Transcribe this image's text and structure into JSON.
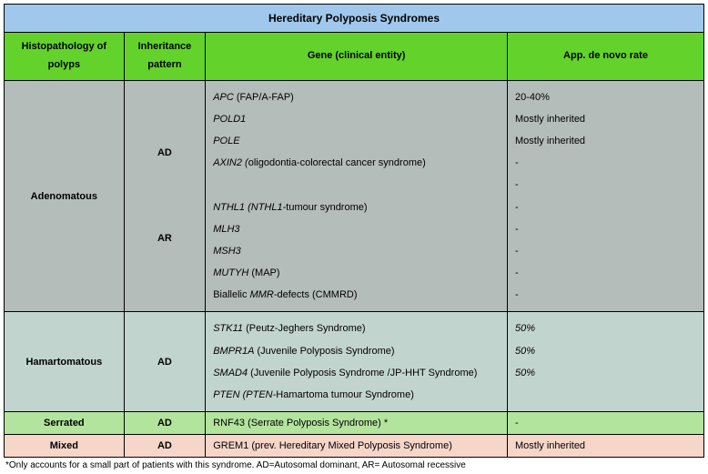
{
  "title": "Hereditary Polyposis Syndromes",
  "headers": {
    "histopathology": "Histopathology of polyps",
    "inheritance": "Inheritance pattern",
    "gene": "Gene (clinical entity)",
    "rate": "App. de novo rate"
  },
  "adenomatous": {
    "label": "Adenomatous",
    "inh_ad": "AD",
    "inh_ar": "AR",
    "genes": [
      {
        "g": "APC",
        "p": " (FAP/A-FAP)"
      },
      {
        "g": "POLD1",
        "p": ""
      },
      {
        "g": "POLE",
        "p": ""
      },
      {
        "g": "AXIN2 (",
        "p": "oligodontia-colorectal cancer syndrome)",
        "blank_after": true
      },
      {
        "g": "NTHL1 (NTHL1-",
        "p": "tumour syndrome)"
      },
      {
        "g": "MLH3",
        "p": ""
      },
      {
        "g": "MSH3",
        "p": ""
      },
      {
        "g": "MUTYH",
        "p": " (MAP)"
      },
      {
        "g": "",
        "p": "Biallelic ",
        "g2": "MMR-",
        "p2": "defects (CMMRD)"
      }
    ],
    "rates": [
      "20-40%",
      "Mostly inherited",
      "Mostly inherited",
      "-",
      "-",
      "-",
      "-",
      "-",
      "-",
      "-"
    ]
  },
  "hamartomatous": {
    "label": "Hamartomatous",
    "inh": "AD",
    "genes": [
      {
        "g": "STK11",
        "p": " (Peutz-Jeghers Syndrome)"
      },
      {
        "g": "BMPR1A",
        "p": " (Juvenile Polyposis Syndrome)"
      },
      {
        "g": "SMAD4",
        "p": " (Juvenile Polyposis Syndrome /JP-HHT Syndrome)"
      },
      {
        "g": "PTEN (PTEN-",
        "p": "Hamartoma tumour Syndrome)"
      }
    ],
    "rates": [
      "50%",
      "50%",
      "50%",
      ""
    ]
  },
  "serrated": {
    "label": "Serrated",
    "inh": "AD",
    "gene_g": "RNF43",
    "gene_p": " (Serrate Polyposis Syndrome) *",
    "rate": "-"
  },
  "mixed": {
    "label": "Mixed",
    "inh": "AD",
    "gene_g": "GREM1",
    "gene_p": " (prev. Hereditary Mixed Polyposis Syndrome)",
    "rate": "Mostly inherited"
  },
  "footnote": "*Only accounts for a small part of patients with this syndrome. AD=Autosomal dominant, AR= Autosomal recessive"
}
